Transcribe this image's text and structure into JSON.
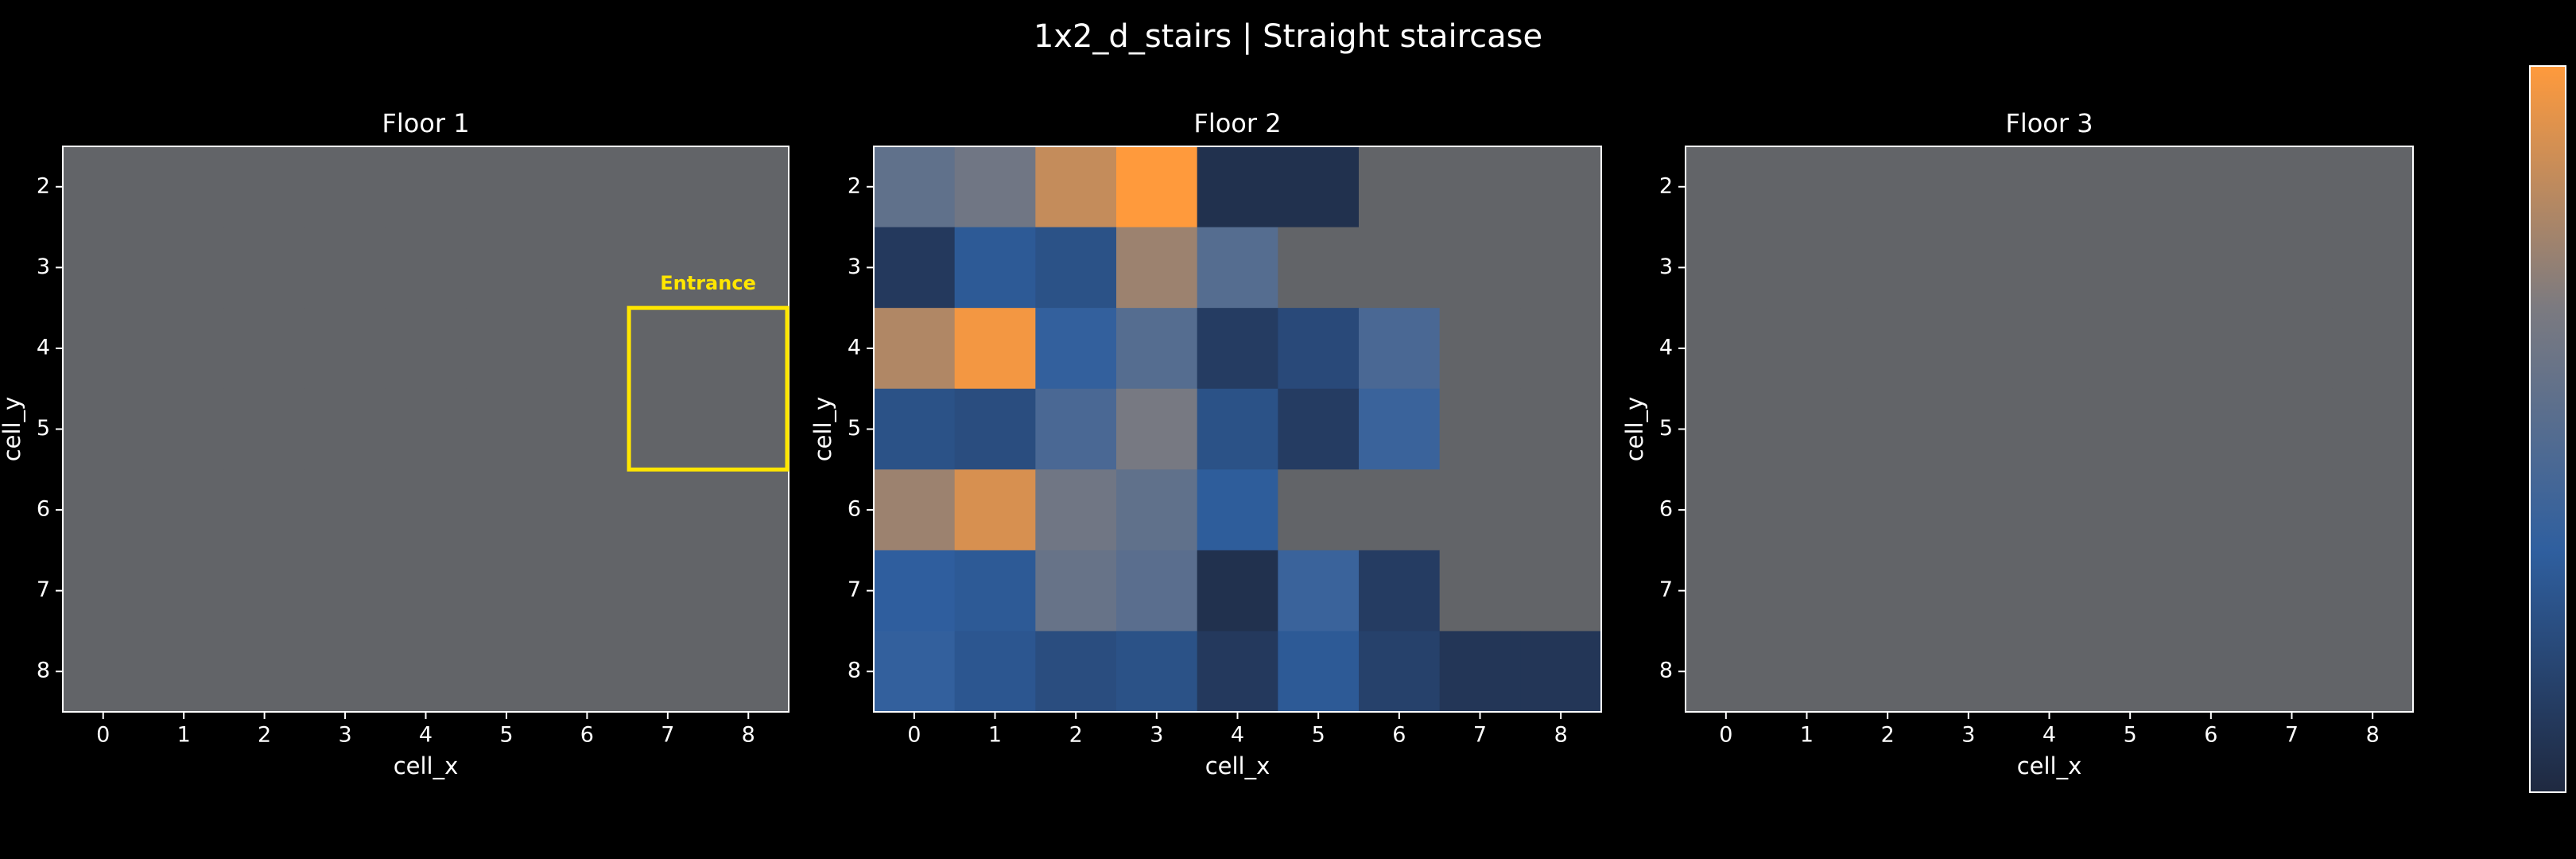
{
  "title": "1x2_d_stairs | Straight staircase",
  "colorbar": {
    "cmap": [
      "#1f2940",
      "#2f5f9f",
      "#7b7a80",
      "#ff9a3c"
    ],
    "zlim": [
      0,
      1
    ]
  },
  "chart_data": [
    {
      "type": "heatmap",
      "title": "Floor 1",
      "xlabel": "cell_x",
      "ylabel": "cell_y",
      "x": [
        0,
        1,
        2,
        3,
        4,
        5,
        6,
        7,
        8
      ],
      "y": [
        2,
        3,
        4,
        5,
        6,
        7,
        8
      ],
      "xlim": [
        -0.5,
        8.5
      ],
      "ylim": [
        8.5,
        1.5
      ],
      "xticks": [
        0,
        1,
        2,
        3,
        4,
        5,
        6,
        7,
        8
      ],
      "yticks": [
        2,
        3,
        4,
        5,
        6,
        7,
        8
      ],
      "nan_color": "#626468",
      "values": [
        [
          null,
          null,
          null,
          null,
          null,
          null,
          null,
          null,
          null
        ],
        [
          null,
          null,
          null,
          null,
          null,
          null,
          null,
          null,
          null
        ],
        [
          null,
          null,
          null,
          null,
          null,
          null,
          null,
          null,
          null
        ],
        [
          null,
          null,
          null,
          null,
          null,
          null,
          null,
          null,
          null
        ],
        [
          null,
          null,
          null,
          null,
          null,
          null,
          null,
          null,
          null
        ],
        [
          null,
          null,
          null,
          null,
          null,
          null,
          null,
          null,
          null
        ],
        [
          null,
          null,
          null,
          null,
          null,
          null,
          null,
          null,
          null
        ]
      ],
      "highlight": {
        "label": "Entrance",
        "xlim": [
          6.5,
          8.5
        ],
        "ylim": [
          3.5,
          5.5
        ],
        "color": "#ffe600"
      }
    },
    {
      "type": "heatmap",
      "title": "Floor 2",
      "xlabel": "cell_x",
      "ylabel": "cell_y",
      "x": [
        0,
        1,
        2,
        3,
        4,
        5,
        6,
        7,
        8
      ],
      "y": [
        2,
        3,
        4,
        5,
        6,
        7,
        8
      ],
      "xlim": [
        -0.5,
        8.5
      ],
      "ylim": [
        8.5,
        1.5
      ],
      "xticks": [
        0,
        1,
        2,
        3,
        4,
        5,
        6,
        7,
        8
      ],
      "yticks": [
        2,
        3,
        4,
        5,
        6,
        7,
        8
      ],
      "nan_color": "#626468",
      "values": [
        [
          0.55,
          0.62,
          0.85,
          1.0,
          0.05,
          0.05,
          null,
          null,
          null
        ],
        [
          0.1,
          0.3,
          0.25,
          0.75,
          0.5,
          null,
          null,
          null,
          null
        ],
        [
          0.8,
          0.97,
          0.35,
          0.5,
          0.12,
          0.2,
          0.45,
          null,
          null
        ],
        [
          0.25,
          0.22,
          0.45,
          0.65,
          0.25,
          0.12,
          0.38,
          null,
          null
        ],
        [
          0.75,
          0.9,
          0.62,
          0.55,
          0.32,
          null,
          null,
          null,
          null
        ],
        [
          0.33,
          0.3,
          0.58,
          0.52,
          0.05,
          0.38,
          0.12,
          null,
          null
        ],
        [
          0.35,
          0.28,
          0.22,
          0.25,
          0.1,
          0.3,
          0.15,
          0.08,
          0.08
        ]
      ]
    },
    {
      "type": "heatmap",
      "title": "Floor 3",
      "xlabel": "cell_x",
      "ylabel": "cell_y",
      "x": [
        0,
        1,
        2,
        3,
        4,
        5,
        6,
        7,
        8
      ],
      "y": [
        2,
        3,
        4,
        5,
        6,
        7,
        8
      ],
      "xlim": [
        -0.5,
        8.5
      ],
      "ylim": [
        8.5,
        1.5
      ],
      "xticks": [
        0,
        1,
        2,
        3,
        4,
        5,
        6,
        7,
        8
      ],
      "yticks": [
        2,
        3,
        4,
        5,
        6,
        7,
        8
      ],
      "nan_color": "#626468",
      "values": [
        [
          null,
          null,
          null,
          null,
          null,
          null,
          null,
          null,
          null
        ],
        [
          null,
          null,
          null,
          null,
          null,
          null,
          null,
          null,
          null
        ],
        [
          null,
          null,
          null,
          null,
          null,
          null,
          null,
          null,
          null
        ],
        [
          null,
          null,
          null,
          null,
          null,
          null,
          null,
          null,
          null
        ],
        [
          null,
          null,
          null,
          null,
          null,
          null,
          null,
          null,
          null
        ],
        [
          null,
          null,
          null,
          null,
          null,
          null,
          null,
          null,
          null
        ],
        [
          null,
          null,
          null,
          null,
          null,
          null,
          null,
          null,
          null
        ]
      ]
    }
  ]
}
